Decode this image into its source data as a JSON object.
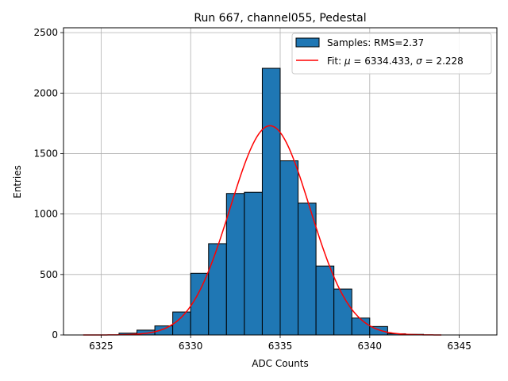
{
  "chart_data": {
    "type": "bar",
    "title": "Run 667, channel055, Pedestal",
    "xlabel": "ADC Counts",
    "ylabel": "Entries",
    "xlim": [
      6322.9,
      6347.1
    ],
    "ylim": [
      0,
      2540
    ],
    "xticks": [
      6325,
      6330,
      6335,
      6340,
      6345
    ],
    "yticks": [
      0,
      500,
      1000,
      1500,
      2000,
      2500
    ],
    "grid": true,
    "legend_position": "top-right",
    "bin_width": 1,
    "bin_edges_start": 6324,
    "histogram": {
      "name": "Samples: RMS=2.37",
      "color": "#1f77b4",
      "edgecolor": "#000000",
      "bins": [
        {
          "left": 6324,
          "value": 0
        },
        {
          "left": 6325,
          "value": 0
        },
        {
          "left": 6326,
          "value": 15
        },
        {
          "left": 6327,
          "value": 40
        },
        {
          "left": 6328,
          "value": 75
        },
        {
          "left": 6329,
          "value": 190
        },
        {
          "left": 6330,
          "value": 510
        },
        {
          "left": 6331,
          "value": 755
        },
        {
          "left": 6332,
          "value": 1170
        },
        {
          "left": 6333,
          "value": 1180
        },
        {
          "left": 6334,
          "value": 2205
        },
        {
          "left": 6335,
          "value": 1440
        },
        {
          "left": 6336,
          "value": 1090
        },
        {
          "left": 6337,
          "value": 570
        },
        {
          "left": 6338,
          "value": 380
        },
        {
          "left": 6339,
          "value": 140
        },
        {
          "left": 6340,
          "value": 70
        },
        {
          "left": 6341,
          "value": 10
        },
        {
          "left": 6342,
          "value": 5
        },
        {
          "left": 6343,
          "value": 0
        }
      ]
    },
    "fit": {
      "name_prefix": "Fit: ",
      "mu_symbol": "μ",
      "mu_text": " = 6334.433, ",
      "sigma_symbol": "σ",
      "sigma_text": " = 2.228",
      "color": "#ff0000",
      "mu": 6334.433,
      "sigma": 2.228,
      "amplitude": 1730,
      "x_range": [
        6324,
        6344
      ]
    }
  }
}
